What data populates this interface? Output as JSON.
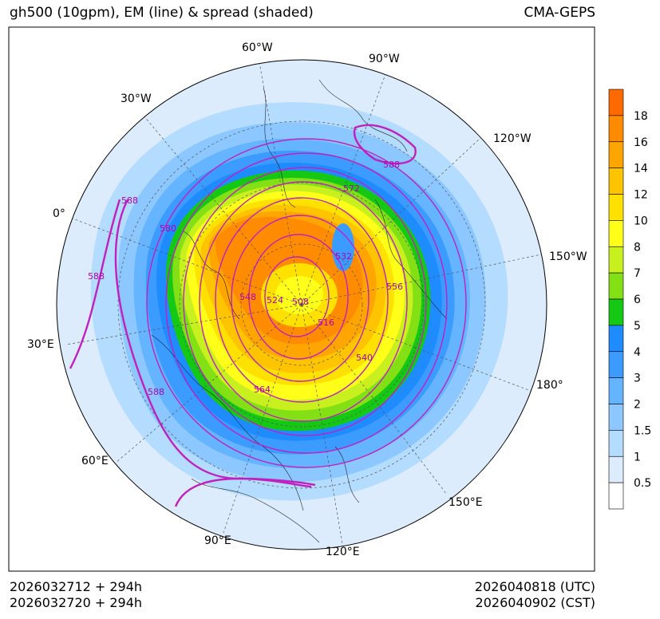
{
  "header": {
    "title": "gh500 (10gpm), EM (line) & spread (shaded)",
    "model": "CMA-GEPS"
  },
  "footer": {
    "init_utc": "2026032712 + 294h",
    "init_cst": "2026032720 + 294h",
    "valid_utc": "2026040818 (UTC)",
    "valid_cst": "2026040902 (CST)"
  },
  "map": {
    "projection": "north-polar-stereographic",
    "longitude_labels": [
      "60°W",
      "90°W",
      "30°W",
      "120°W",
      "0°",
      "150°W",
      "30°E",
      "180°",
      "60°E",
      "150°E",
      "90°E",
      "120°E"
    ],
    "contour_labels": [
      "588",
      "572",
      "580",
      "588",
      "532",
      "556",
      "548",
      "524",
      "508",
      "516",
      "540",
      "564",
      "588",
      "588"
    ]
  },
  "colorbar": {
    "levels": [
      "18",
      "16",
      "14",
      "12",
      "10",
      "8",
      "7",
      "6",
      "5",
      "4",
      "3",
      "2",
      "1.5",
      "1",
      "0.5"
    ],
    "colors": [
      "#ff6a00",
      "#ff8c00",
      "#ffa500",
      "#ffc400",
      "#ffe100",
      "#ffff1a",
      "#c8f01e",
      "#82e014",
      "#14c814",
      "#1e8cff",
      "#3c9bff",
      "#64b4ff",
      "#8cc8ff",
      "#b4dcff",
      "#dcecfc",
      "#ffffff"
    ]
  }
}
